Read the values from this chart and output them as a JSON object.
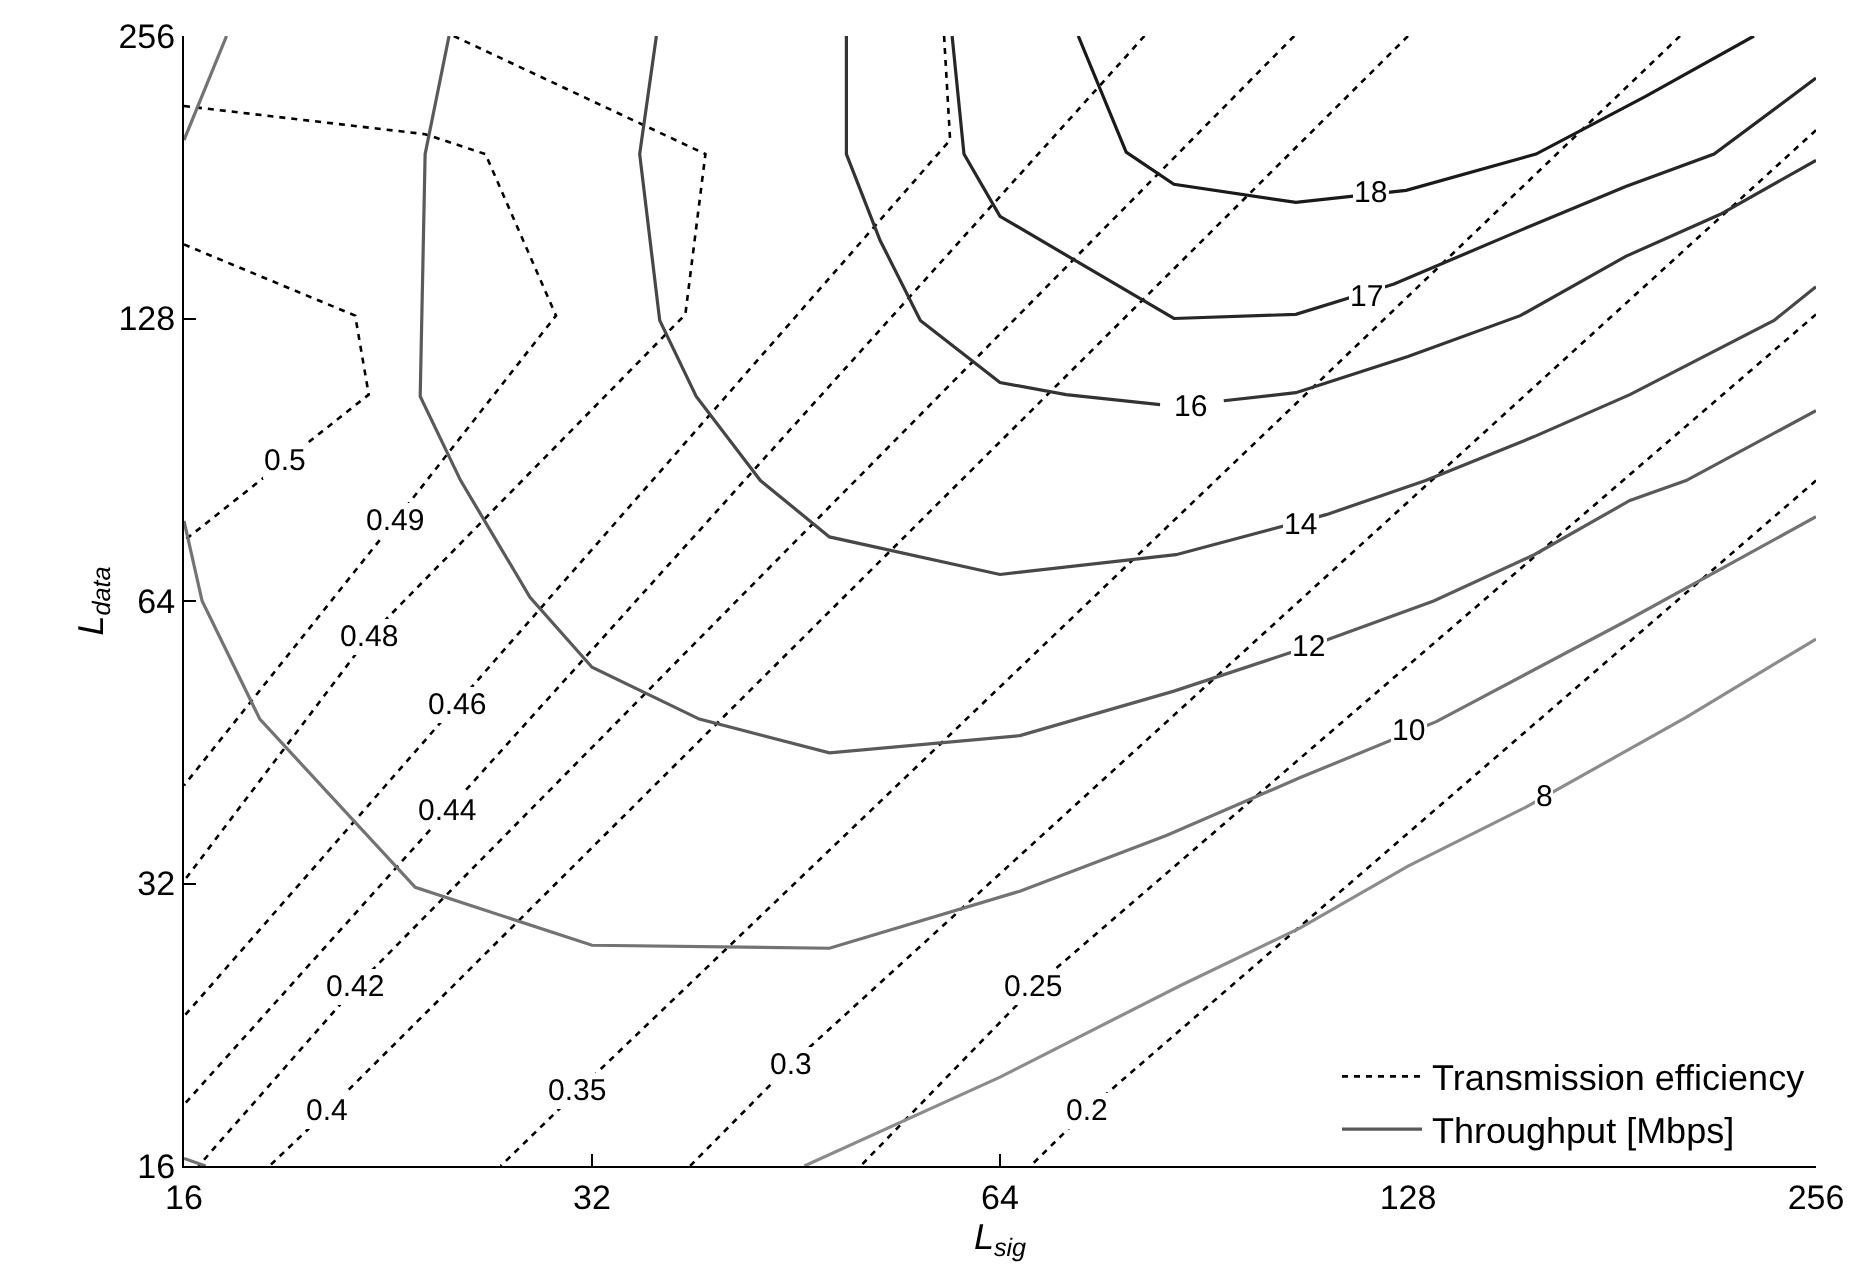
{
  "chart_data": {
    "type": "line",
    "xlabel": "L$_{sig}$",
    "ylabel": "L$_{data}$",
    "log": "xy",
    "xlim": [
      16,
      256
    ],
    "ylim": [
      16,
      256
    ],
    "xticks": [
      16,
      32,
      64,
      128,
      256
    ],
    "yticks": [
      16,
      32,
      64,
      128,
      256
    ],
    "grid": false,
    "legend": "bottom right",
    "marker": "none",
    "series": [
      {
        "name": "Transmission efficiency",
        "color": "#000000",
        "line_style": "dotted",
        "x": [
          16,
          21.4,
          21.9,
          16
        ],
        "values": [
          153.5,
          128.9,
          106.2,
          74.2
        ]
      },
      {
        "color": "#000000",
        "line_style": "dotted",
        "x": [
          16,
          24.1,
          26.7,
          30.1,
          22.9,
          16
        ],
        "values": [
          215.6,
          201.2,
          191.6,
          128.9,
          77.9,
          40.7
        ]
      },
      {
        "color": "#000000",
        "line_style": "dotted",
        "x": [
          25.3,
          38.8,
          37.5,
          21.9,
          16
        ],
        "values": [
          256,
          191.6,
          129.3,
          58.6,
          32.2
        ]
      },
      {
        "color": "#000000",
        "line_style": "dotted",
        "x": [
          58.2,
          58.8,
          25.4,
          16
        ],
        "values": [
          256,
          198.3,
          49.6,
          23.1
        ]
      },
      {
        "color": "#000000",
        "line_style": "dotted",
        "x": [
          81.8,
          25.0,
          16
        ],
        "values": [
          256,
          38.2,
          18.6
        ]
      },
      {
        "color": "#000000",
        "line_style": "dotted",
        "x": [
          105.5,
          21.4,
          16.4
        ],
        "values": [
          256,
          24.8,
          16
        ]
      },
      {
        "color": "#000000",
        "line_style": "dotted",
        "x": [
          128,
          20.4,
          18.5
        ],
        "values": [
          256,
          18.3,
          16
        ]
      },
      {
        "color": "#000000",
        "line_style": "dotted",
        "x": [
          203.2,
          31.2,
          27.4
        ],
        "values": [
          256,
          19.2,
          16
        ]
      },
      {
        "color": "#000000",
        "line_style": "dotted",
        "x": [
          256,
          44.8,
          37.8
        ],
        "values": [
          203.2,
          20.5,
          16
        ]
      },
      {
        "color": "#000000",
        "line_style": "dotted",
        "x": [
          256,
          67.8,
          50.5
        ],
        "values": [
          129.3,
          24.8,
          16
        ]
      },
      {
        "color": "#000000",
        "line_style": "dotted",
        "x": [
          256,
          74.1,
          67.4
        ],
        "values": [
          86.0,
          18.3,
          16
        ]
      },
      {
        "name": "Throughput [Mbps]",
        "color": "#5a5a5a",
        "line_style": "solid",
        "x": [
          25.1,
          24.1,
          23.9,
          25.6,
          28.8,
          32,
          38.4,
          47.9,
          66.2,
          86.0,
          108.0,
          133.7,
          158.6,
          186.6,
          205.3,
          256
        ],
        "values": [
          256,
          191.6,
          105.7,
          86.0,
          64.6,
          54.4,
          47.9,
          44.1,
          46.0,
          51.3,
          57.2,
          64,
          71.7,
          81.9,
          86.0,
          102.1
        ]
      },
      {
        "color": "#8c8c8c",
        "line_style": "solid",
        "x": [
          45.9,
          64,
          86.9,
          106.6,
          128,
          156.4,
          205.3,
          256
        ],
        "values": [
          16,
          19.9,
          24.9,
          28.7,
          33.4,
          38.6,
          48.1,
          58.3
        ]
      },
      {
        "color": "#737373",
        "line_style": "solid",
        "x": [
          16,
          16.5,
          18.2,
          23.7,
          32,
          47.9,
          66.2,
          84.9,
          106.6,
          134.3,
          185.3,
          256
        ],
        "values": [
          77.9,
          64,
          47.9,
          31.7,
          27.5,
          27.3,
          31.4,
          36.0,
          41.5,
          47.6,
          60.9,
          78.7
        ]
      },
      {
        "color": "#737373",
        "line_style": "solid",
        "x": [
          16,
          17.2
        ],
        "values": [
          198.3,
          256
        ]
      },
      {
        "color": "#737373",
        "line_style": "solid",
        "x": [
          16,
          16.6
        ],
        "values": [
          16.3,
          16
        ]
      },
      {
        "color": "#474747",
        "line_style": "solid",
        "x": [
          35.7,
          34.7,
          35.9,
          38.2,
          42.6,
          47.9,
          64,
          86.3,
          111.4,
          131.9,
          158.6,
          186.6,
          238.4,
          256
        ],
        "values": [
          256,
          191.6,
          127.4,
          105.7,
          86.0,
          74.9,
          68.3,
          71.7,
          79.1,
          86.0,
          95.8,
          106.2,
          127.4,
          138.4
        ]
      },
      {
        "color": "#333333",
        "line_style": "solid",
        "x": [
          49.3,
          49.3,
          52.2,
          55.9,
          64,
          71.6,
          84.0,
          88.5,
          93.6,
          105.8,
          128,
          154.9,
          185.3,
          217.6,
          256
        ],
        "values": [
          256,
          191.6,
          155.1,
          127.4,
          109.4,
          106.2,
          103.6,
          null,
          104.6,
          106.7,
          116.6,
          128.9,
          149.1,
          165.3,
          188.7
        ]
      },
      {
        "color": "#262626",
        "line_style": "solid",
        "x": [
          59.0,
          60.2,
          64,
          86.0,
          105.8,
          125.0,
          154.9,
          185.3,
          215.3,
          256
        ],
        "values": [
          256,
          191.6,
          164.5,
          128,
          129.3,
          139.3,
          158.9,
          177.0,
          191.6,
          230.9
        ]
      },
      {
        "color": "#1a1a1a",
        "line_style": "solid",
        "x": [
          73.1,
          79.3,
          86.0,
          105.8,
          127.6,
          159.1,
          191.8,
          230.4
        ],
        "values": [
          256,
          192.5,
          177.9,
          170.2,
          175.3,
          191.6,
          220.9,
          256
        ]
      }
    ],
    "annotations": [
      {
        "text": "0.5",
        "x": 19.0,
        "y": 90.3
      },
      {
        "text": "0.49",
        "x": 22.9,
        "y": 77.9
      },
      {
        "text": "0.48",
        "x": 21.9,
        "y": 58.6
      },
      {
        "text": "0.46",
        "x": 25.4,
        "y": 49.6
      },
      {
        "text": "0.44",
        "x": 25.0,
        "y": 38.2
      },
      {
        "text": "0.42",
        "x": 21.4,
        "y": 24.8
      },
      {
        "text": "0.4",
        "x": 20.4,
        "y": 18.3
      },
      {
        "text": "0.35",
        "x": 31.2,
        "y": 19.2
      },
      {
        "text": "0.3",
        "x": 44.8,
        "y": 20.5
      },
      {
        "text": "0.25",
        "x": 67.8,
        "y": 24.8
      },
      {
        "text": "0.2",
        "x": 74.1,
        "y": 18.3
      },
      {
        "text": "8",
        "x": 161.3,
        "y": 39.5
      },
      {
        "text": "10",
        "x": 128.4,
        "y": 46.5
      },
      {
        "text": "12",
        "x": 108.0,
        "y": 57.2
      },
      {
        "text": "14",
        "x": 106.6,
        "y": 77.2
      },
      {
        "text": "16",
        "x": 88.5,
        "y": 103
      },
      {
        "text": "17",
        "x": 119.2,
        "y": 135
      },
      {
        "text": "18",
        "x": 120.4,
        "y": 174
      }
    ]
  }
}
